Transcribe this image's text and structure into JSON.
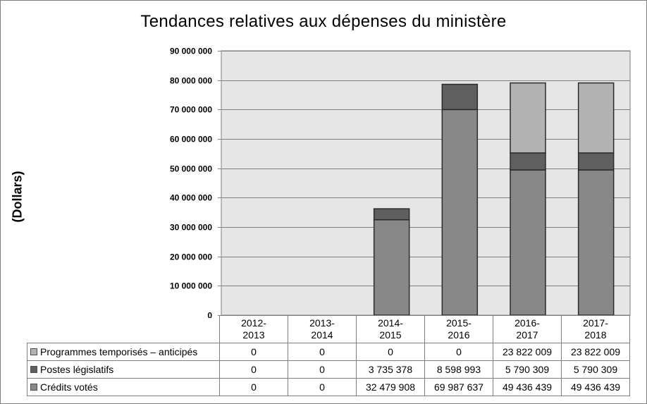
{
  "chart_data": {
    "type": "bar",
    "stacked": true,
    "title": "Tendances relatives aux dépenses du ministère",
    "ylabel": "(Dollars)",
    "xlabel": "",
    "ylim": [
      0,
      90000000
    ],
    "yticks": [
      "0",
      "10 000 000",
      "20 000 000",
      "30 000 000",
      "40 000 000",
      "50 000 000",
      "60 000 000",
      "70 000 000",
      "80 000 000",
      "90 000 000"
    ],
    "ytick_values": [
      0,
      10000000,
      20000000,
      30000000,
      40000000,
      50000000,
      60000000,
      70000000,
      80000000,
      90000000
    ],
    "grid": true,
    "legend": "data-table",
    "categories": [
      {
        "line1": "2012-",
        "line2": "2013"
      },
      {
        "line1": "2013-",
        "line2": "2014"
      },
      {
        "line1": "2014-",
        "line2": "2015"
      },
      {
        "line1": "2015-",
        "line2": "2016"
      },
      {
        "line1": "2016-",
        "line2": "2017"
      },
      {
        "line1": "2017-",
        "line2": "2018"
      }
    ],
    "series": [
      {
        "name": "Programmes temporisés – anticipés",
        "color": "#b3b3b3",
        "values": [
          0,
          0,
          0,
          0,
          23822009,
          23822009
        ],
        "labels": [
          "0",
          "0",
          "0",
          "0",
          "23 822 009",
          "23 822 009"
        ]
      },
      {
        "name": "Postes législatifs",
        "color": "#5f5f5f",
        "values": [
          0,
          0,
          3735378,
          8598993,
          5790309,
          5790309
        ],
        "labels": [
          "0",
          "0",
          "3 735 378",
          "8 598 993",
          "5 790 309",
          "5 790 309"
        ]
      },
      {
        "name": "Crédits votés",
        "color": "#888888",
        "values": [
          0,
          0,
          32479908,
          69987637,
          49436439,
          49436439
        ],
        "labels": [
          "0",
          "0",
          "32 479 908",
          "69 987 637",
          "49 436 439",
          "49 436 439"
        ]
      }
    ],
    "plot_background": "#e6e6e6",
    "grid_color": "#808080",
    "bar_border_color": "#2b2b2b"
  }
}
